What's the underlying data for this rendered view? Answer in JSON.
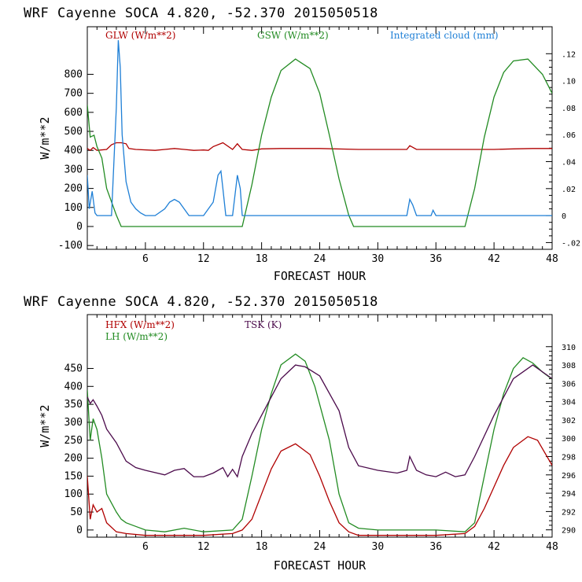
{
  "chart_data": [
    {
      "type": "line",
      "title": "WRF  Cayenne SOCA   4.820, -52.370  2015050518",
      "xlabel": "FORECAST HOUR",
      "ylabel": "W/m**2",
      "xlim": [
        0,
        48
      ],
      "ylim": [
        -120,
        1050
      ],
      "y2lim": [
        -0.025,
        0.14
      ],
      "xticks": [
        6,
        12,
        18,
        24,
        30,
        36,
        42,
        48
      ],
      "yticks": [
        -100,
        0,
        100,
        200,
        300,
        400,
        500,
        600,
        700,
        800
      ],
      "y2ticks": [
        -0.02,
        0,
        0.02,
        0.04,
        0.06,
        0.08,
        0.1,
        0.12
      ],
      "y2ticklabels": [
        "-.02",
        "0",
        ".02",
        ".04",
        ".06",
        ".08",
        ".10",
        ".12"
      ],
      "series": [
        {
          "name": "GLW (W/m**2)",
          "color": "#b00000",
          "axis": "left",
          "x": [
            0,
            0.3,
            0.6,
            1,
            2,
            2.5,
            3,
            3.5,
            4,
            4.3,
            5,
            7,
            8,
            9,
            10,
            11,
            12,
            12.5,
            13,
            14,
            15,
            15.5,
            16,
            17,
            18,
            20,
            24,
            28,
            32,
            33,
            33.3,
            34,
            36,
            38,
            40,
            42,
            44,
            46,
            48
          ],
          "y": [
            410,
            400,
            415,
            400,
            405,
            430,
            440,
            440,
            435,
            410,
            405,
            400,
            405,
            410,
            405,
            400,
            402,
            400,
            420,
            440,
            405,
            435,
            405,
            400,
            408,
            410,
            410,
            405,
            405,
            405,
            425,
            405,
            405,
            405,
            405,
            405,
            408,
            410,
            410
          ]
        },
        {
          "name": "GSW (W/m**2)",
          "color": "#228b22",
          "axis": "left",
          "x": [
            0,
            0.3,
            0.7,
            1,
            1.5,
            2,
            3,
            3.5,
            16,
            17,
            18,
            19,
            20,
            21.5,
            23,
            24,
            25,
            26,
            27,
            27.5,
            39,
            40,
            41,
            42,
            43,
            44,
            45.5,
            47,
            48
          ],
          "y": [
            640,
            470,
            480,
            420,
            360,
            200,
            60,
            0,
            0,
            220,
            480,
            680,
            820,
            880,
            830,
            700,
            480,
            250,
            60,
            0,
            0,
            200,
            470,
            680,
            810,
            870,
            880,
            800,
            700
          ]
        },
        {
          "name": "Integrated cloud (mm)",
          "color": "#1e7fd6",
          "axis": "right",
          "x": [
            0,
            0.2,
            0.5,
            0.8,
            1,
            1.2,
            2.5,
            3,
            3.2,
            3.4,
            3.6,
            4,
            4.5,
            5,
            5.5,
            6,
            7,
            8,
            8.5,
            9,
            9.5,
            10,
            10.5,
            12,
            13,
            13.5,
            13.8,
            14,
            14.3,
            15,
            15.5,
            15.8,
            16,
            16.2,
            33,
            33.3,
            33.6,
            34,
            35.5,
            35.7,
            36,
            48
          ],
          "y": [
            0.03,
            0.005,
            0.018,
            0.002,
            0,
            0,
            0,
            0.08,
            0.13,
            0.11,
            0.06,
            0.025,
            0.01,
            0.005,
            0.002,
            0,
            0,
            0.005,
            0.01,
            0.012,
            0.01,
            0.005,
            0,
            0,
            0.01,
            0.03,
            0.033,
            0.02,
            0,
            0,
            0.03,
            0.02,
            0,
            0,
            0,
            0.012,
            0.008,
            0,
            0,
            0.004,
            0,
            0
          ]
        }
      ]
    },
    {
      "type": "line",
      "title": "WRF  Cayenne SOCA   4.820, -52.370  2015050518",
      "xlabel": "FORECAST HOUR",
      "ylabel": "W/m**2",
      "xlim": [
        0,
        48
      ],
      "ylim": [
        -20,
        600
      ],
      "y2lim": [
        289.2,
        313.5
      ],
      "xticks": [
        6,
        12,
        18,
        24,
        30,
        36,
        42,
        48
      ],
      "yticks": [
        0,
        50,
        100,
        150,
        200,
        250,
        300,
        350,
        400,
        450
      ],
      "y2ticks": [
        290,
        292,
        294,
        296,
        298,
        300,
        302,
        304,
        306,
        308,
        310
      ],
      "y2ticklabels": [
        "290",
        "292",
        "294",
        "296",
        "298",
        "300",
        "302",
        "304",
        "306",
        "308",
        "310"
      ],
      "series": [
        {
          "name": "HFX (W/m**2)",
          "color": "#b00000",
          "axis": "left",
          "x": [
            0,
            0.3,
            0.6,
            1,
            1.5,
            2,
            3,
            4,
            6,
            12,
            15,
            16,
            17,
            18,
            19,
            20,
            21.5,
            23,
            24,
            25,
            26,
            27,
            28,
            30,
            36,
            39,
            40,
            41,
            42,
            43,
            44,
            45.5,
            46.5,
            48
          ],
          "y": [
            150,
            30,
            70,
            50,
            60,
            20,
            -5,
            -10,
            -15,
            -15,
            -10,
            0,
            30,
            100,
            170,
            220,
            240,
            210,
            150,
            80,
            20,
            -5,
            -15,
            -15,
            -15,
            -10,
            10,
            60,
            120,
            180,
            230,
            260,
            250,
            180
          ]
        },
        {
          "name": "LH  (W/m**2)",
          "color": "#228b22",
          "axis": "left",
          "x": [
            0,
            0.3,
            0.6,
            1,
            1.5,
            2,
            3,
            3.5,
            4,
            5,
            6,
            8,
            10,
            12,
            15,
            16,
            17,
            18,
            19,
            20,
            21.5,
            22.5,
            23.5,
            25,
            26,
            27,
            28,
            30,
            36,
            39,
            40,
            41,
            42,
            43,
            44,
            45,
            46,
            47,
            48
          ],
          "y": [
            390,
            250,
            310,
            280,
            200,
            100,
            50,
            30,
            20,
            10,
            0,
            -5,
            5,
            -5,
            0,
            30,
            150,
            280,
            380,
            460,
            490,
            470,
            400,
            250,
            100,
            20,
            5,
            0,
            0,
            -5,
            20,
            150,
            280,
            380,
            450,
            480,
            465,
            440,
            420
          ]
        },
        {
          "name": "TSK (K)",
          "color": "#4b0a4b",
          "axis": "right",
          "x": [
            0,
            0.3,
            0.6,
            1,
            1.5,
            2,
            3,
            4,
            5,
            6,
            8,
            9,
            10,
            11,
            12,
            13,
            14,
            14.5,
            15,
            15.5,
            16,
            17,
            18,
            19,
            20,
            21.5,
            22.5,
            24,
            26,
            27,
            28,
            30,
            32,
            33,
            33.3,
            34,
            35,
            36,
            37,
            38,
            39,
            40,
            42,
            44,
            46,
            48
          ],
          "y": [
            304.5,
            303.8,
            304.2,
            303.5,
            302.5,
            301,
            299.5,
            297.5,
            296.8,
            296.5,
            296,
            296.5,
            296.7,
            295.8,
            295.8,
            296.2,
            296.8,
            295.8,
            296.6,
            295.8,
            298,
            300.5,
            302.5,
            304.5,
            306.5,
            308,
            307.8,
            306.8,
            303,
            299,
            297,
            296.5,
            296.2,
            296.5,
            298,
            296.5,
            296,
            295.8,
            296.3,
            295.8,
            296,
            298,
            302.5,
            306.5,
            308,
            306.5
          ]
        }
      ]
    }
  ]
}
